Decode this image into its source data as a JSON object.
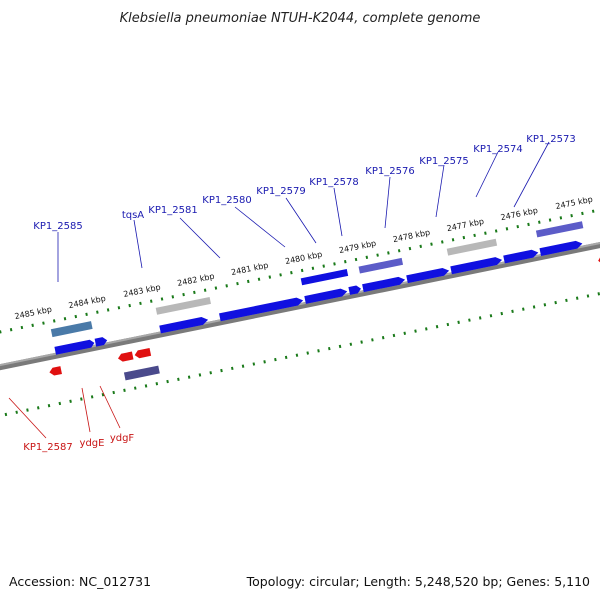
{
  "title": "Klebsiella pneumoniae NTUH-K2044, complete genome",
  "footer": {
    "accession": "Accession: NC_012731",
    "summary": "Topology: circular; Length: 5,248,520 bp; Genes: 5,110"
  },
  "scale": {
    "tick_labels": [
      "2485 kbp",
      "2484 kbp",
      "2483 kbp",
      "2482 kbp",
      "2481 kbp",
      "2480 kbp",
      "2479 kbp",
      "2478 kbp",
      "2477 kbp",
      "2476 kbp",
      "2475 kbp"
    ]
  },
  "genes": {
    "forward_labels": [
      "KP1_2585",
      "tqsA",
      "KP1_2581",
      "KP1_2580",
      "KP1_2579",
      "KP1_2578",
      "KP1_2576",
      "KP1_2575",
      "KP1_2574",
      "KP1_2573"
    ],
    "reverse_labels": [
      "KP1_2587",
      "ydgE",
      "ydgF"
    ]
  },
  "colors": {
    "forward_gene": "#1010e0",
    "reverse_gene": "#e01010",
    "pseudo_gene": "#b8b8b8",
    "feature_blue": "#5c5cc8",
    "feature_steel": "#4a7aa8",
    "feature_dark": "#4a4a8c",
    "backbone": "#7a7a7a",
    "tick": "#1a7a1a"
  }
}
